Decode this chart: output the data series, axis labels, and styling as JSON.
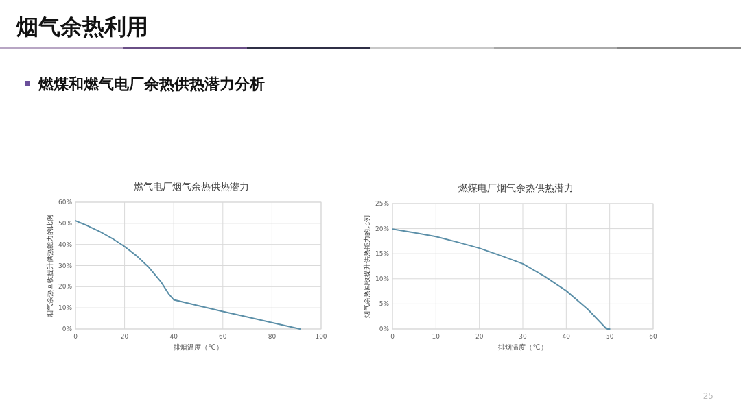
{
  "chart_data": [
    {
      "type": "line",
      "title": "燃气电厂烟气余热供热潜力",
      "xlabel": "排烟温度（℃）",
      "ylabel": "烟气余热回收提升供热能力的比例",
      "annotations": [
        "烟气余热利用",
        "燃煤和燃气电厂余热供热潜力分析",
        "25"
      ],
      "x": [
        0,
        5,
        10,
        15,
        20,
        25,
        30,
        35,
        38,
        40,
        50,
        60,
        70,
        80,
        91.4
      ],
      "series": [
        {
          "color": "#5b8fa8",
          "values": [
            51.2,
            48.8,
            46,
            42.8,
            39,
            34.5,
            29,
            22,
            16.5,
            13.8,
            11,
            8.3,
            5.7,
            3,
            0
          ]
        }
      ],
      "xlim": [
        0,
        100
      ],
      "xticks": [
        0,
        20,
        40,
        60,
        80,
        100
      ],
      "ylim": [
        0,
        60
      ],
      "yticks": [
        {
          "value": 0,
          "label": "0%"
        },
        {
          "value": 10,
          "label": "10%"
        },
        {
          "value": 20,
          "label": "20%"
        },
        {
          "value": 30,
          "label": "30%"
        },
        {
          "value": 40,
          "label": "40%"
        },
        {
          "value": 50,
          "label": "50%"
        },
        {
          "value": 60,
          "label": "60%"
        }
      ],
      "grid": true,
      "marker": "none",
      "line_style": "solid"
    },
    {
      "type": "line",
      "title": "燃煤电厂烟气余热供热潜力",
      "xlabel": "排烟温度（℃）",
      "ylabel": "烟气余热回收提升供热能力的比例",
      "x": [
        0,
        5,
        10,
        15,
        20,
        25,
        30,
        35,
        40,
        45,
        49.3,
        50
      ],
      "series": [
        {
          "color": "#5b8fa8",
          "values": [
            19.9,
            19.2,
            18.4,
            17.3,
            16.1,
            14.6,
            13,
            10.5,
            7.6,
            3.9,
            0,
            0
          ]
        }
      ],
      "xlim": [
        0,
        60
      ],
      "xticks": [
        0,
        10,
        20,
        30,
        40,
        50,
        60
      ],
      "ylim": [
        0,
        25
      ],
      "yticks": [
        {
          "value": 0,
          "label": "0%"
        },
        {
          "value": 5,
          "label": "5%"
        },
        {
          "value": 10,
          "label": "10%"
        },
        {
          "value": 15,
          "label": "15%"
        },
        {
          "value": 20,
          "label": "20%"
        },
        {
          "value": 25,
          "label": "25%"
        }
      ],
      "grid": true,
      "marker": "none",
      "line_style": "solid"
    }
  ]
}
